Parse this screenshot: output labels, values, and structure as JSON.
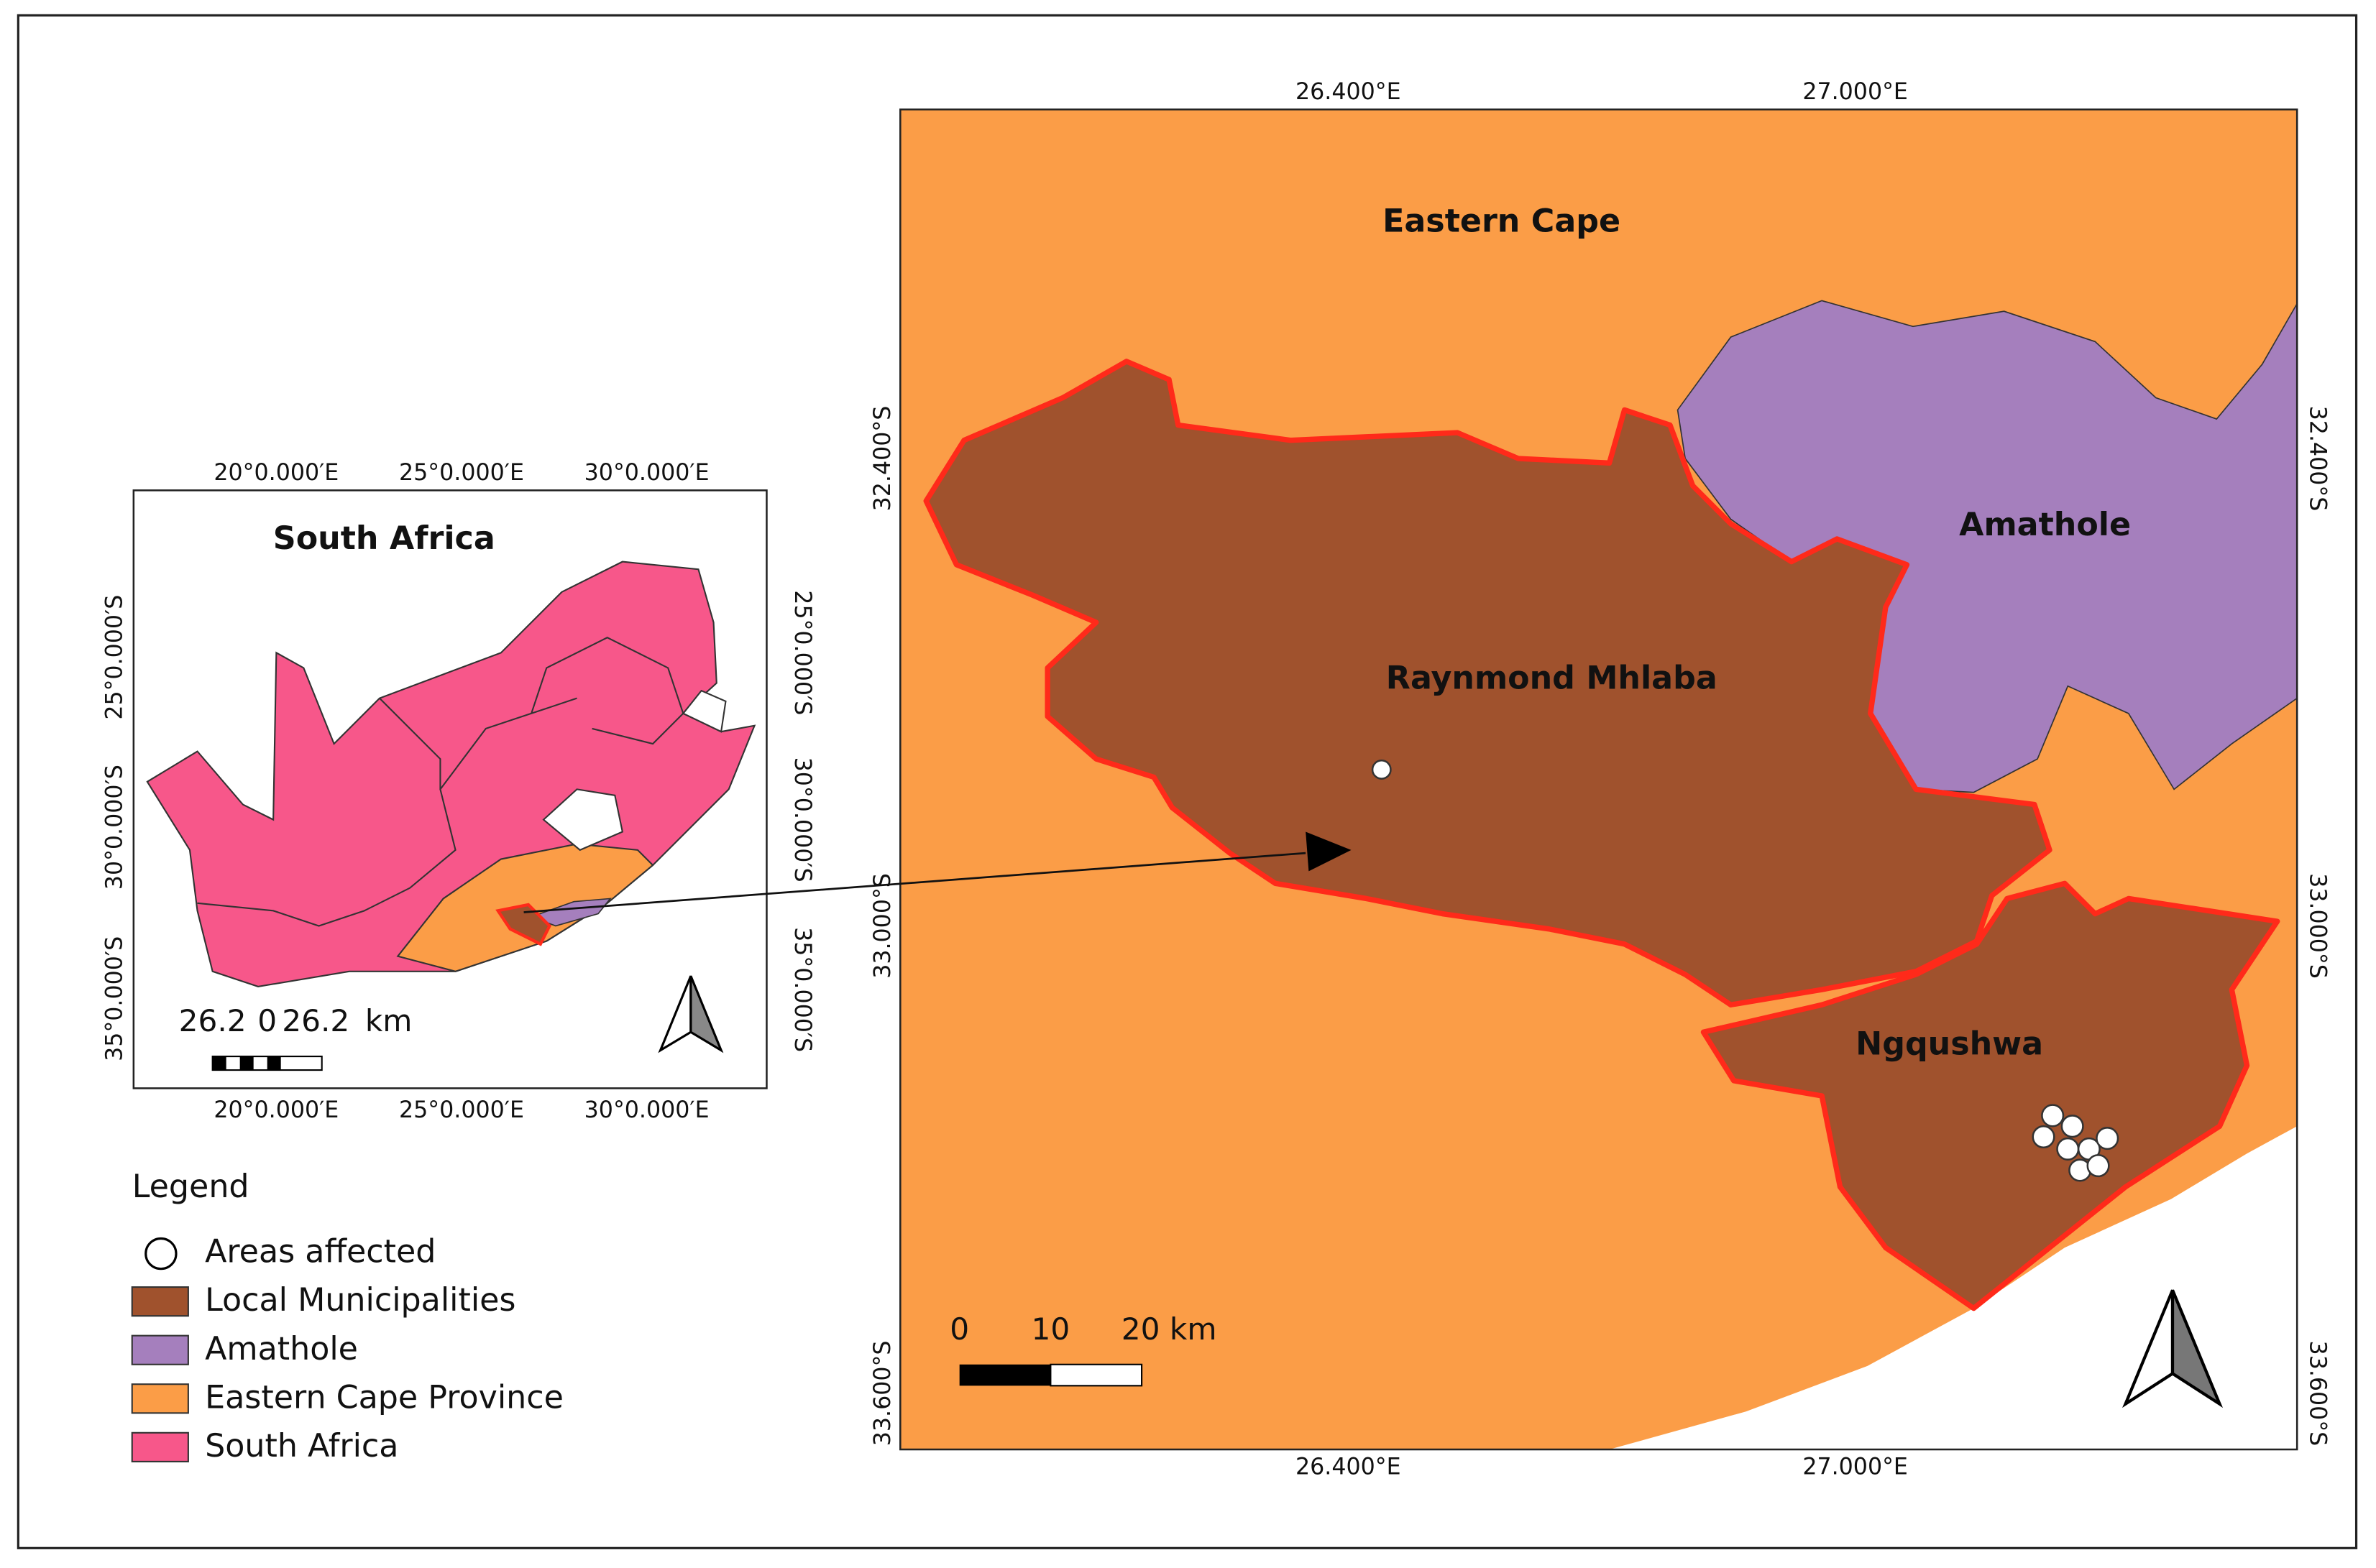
{
  "inset": {
    "title": "South Africa",
    "top_labels": [
      "20°0.000′E",
      "25°0.000′E",
      "30°0.000′E"
    ],
    "bottom_labels": [
      "20°0.000′E",
      "25°0.000′E",
      "30°0.000′E"
    ],
    "left_labels": [
      "25°0.000′S",
      "30°0.000′S",
      "35°0.000′S"
    ],
    "right_labels": [
      "25°0.000′S",
      "30°0.000′S",
      "35°0.000′S"
    ],
    "scale_labels": [
      "26.2",
      "0",
      "26.2",
      "km"
    ]
  },
  "legend": {
    "title": "Legend",
    "items": [
      "Areas affected",
      "Local Municipalities",
      "Amathole",
      "Eastern Cape Province",
      "South Africa"
    ]
  },
  "main_map": {
    "top_labels": [
      "26.400°E",
      "27.000°E"
    ],
    "bottom_labels": [
      "26.400°E",
      "27.000°E"
    ],
    "left_labels": [
      "32.400°S",
      "33.000°S",
      "33.600°S"
    ],
    "right_labels": [
      "32.400°S",
      "33.000°S",
      "33.600°S"
    ],
    "region_labels": [
      "Eastern Cape",
      "Amathole",
      "Raynmond Mhlaba",
      "Ngqushwa"
    ],
    "scale_labels": [
      "0",
      "10",
      "20 km"
    ]
  }
}
